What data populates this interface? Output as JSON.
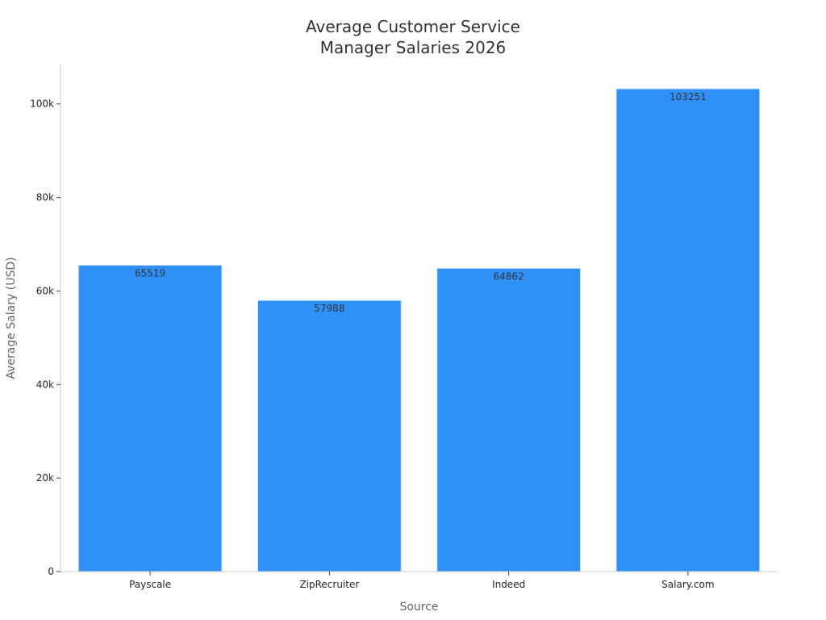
{
  "chart_data": {
    "type": "bar",
    "title_lines": [
      "Average Customer Service",
      "Manager Salaries 2026"
    ],
    "xlabel": "Source",
    "ylabel": "Average Salary (USD)",
    "categories": [
      "Payscale",
      "ZipRecruiter",
      "Indeed",
      "Salary.com"
    ],
    "values": [
      65519,
      57988,
      64862,
      103251
    ],
    "data_labels": [
      "65519",
      "57988",
      "64862",
      "103251"
    ],
    "y_ticks": [
      0,
      20000,
      40000,
      60000,
      80000,
      100000
    ],
    "y_tick_labels": [
      "0",
      "20k",
      "40k",
      "60k",
      "80k",
      "100k"
    ],
    "ylim": [
      0,
      108412
    ],
    "grid": false,
    "legend": "none",
    "colors": {
      "bar": "#2f90f8",
      "bar_edge": "#d6e6fb",
      "axis": "#cccccc",
      "text": "#262626",
      "title": "#333333",
      "axis_title": "#666666"
    }
  }
}
